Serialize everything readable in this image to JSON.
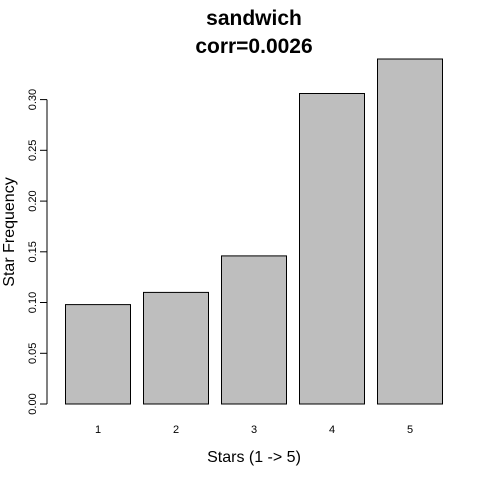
{
  "chart_data": {
    "type": "bar",
    "title": "sandwich",
    "subtitle": "corr=0.0026",
    "xlabel": "Stars (1 -> 5)",
    "ylabel": "Star Frequency",
    "categories": [
      "1",
      "2",
      "3",
      "4",
      "5"
    ],
    "values": [
      0.098,
      0.11,
      0.146,
      0.306,
      0.34
    ],
    "ylim": [
      0,
      0.34
    ],
    "yticks": [
      "0.00",
      "0.05",
      "0.10",
      "0.15",
      "0.20",
      "0.25",
      "0.30"
    ],
    "bar_color": "#bebebe",
    "grid": false,
    "legend": "none"
  }
}
